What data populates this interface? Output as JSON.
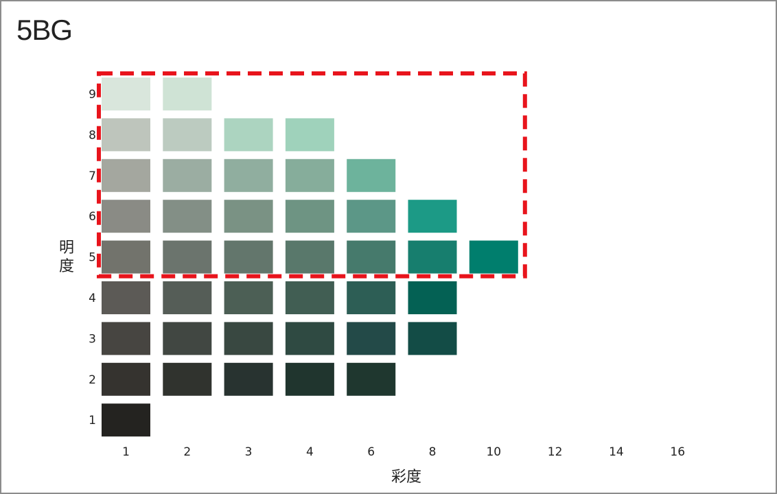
{
  "title": "5BG",
  "axes": {
    "x_label": "彩度",
    "y_label": "明度",
    "x_ticks": [
      "1",
      "2",
      "3",
      "4",
      "6",
      "8",
      "10",
      "12",
      "14",
      "16"
    ],
    "y_ticks": [
      "1",
      "2",
      "3",
      "4",
      "5",
      "6",
      "7",
      "8",
      "9"
    ]
  },
  "highlight": {
    "style": "dashed",
    "color": "#e8141c",
    "value_range": [
      5,
      9
    ],
    "chroma_range": [
      1,
      10
    ]
  },
  "swatches": [
    {
      "value": 9,
      "chroma": 1,
      "color": "#d9e6dc"
    },
    {
      "value": 9,
      "chroma": 2,
      "color": "#cfe3d5"
    },
    {
      "value": 8,
      "chroma": 1,
      "color": "#bec5bc"
    },
    {
      "value": 8,
      "chroma": 2,
      "color": "#bccbc0"
    },
    {
      "value": 8,
      "chroma": 3,
      "color": "#acd4c0"
    },
    {
      "value": 8,
      "chroma": 4,
      "color": "#9fd2bb"
    },
    {
      "value": 7,
      "chroma": 1,
      "color": "#a4a79f"
    },
    {
      "value": 7,
      "chroma": 2,
      "color": "#9bada2"
    },
    {
      "value": 7,
      "chroma": 3,
      "color": "#90ae9f"
    },
    {
      "value": 7,
      "chroma": 4,
      "color": "#86ad9b"
    },
    {
      "value": 7,
      "chroma": 6,
      "color": "#6db39c"
    },
    {
      "value": 6,
      "chroma": 1,
      "color": "#8a8b85"
    },
    {
      "value": 6,
      "chroma": 2,
      "color": "#838f86"
    },
    {
      "value": 6,
      "chroma": 3,
      "color": "#7a9284"
    },
    {
      "value": 6,
      "chroma": 4,
      "color": "#6e9483"
    },
    {
      "value": 6,
      "chroma": 6,
      "color": "#5c9787"
    },
    {
      "value": 6,
      "chroma": 8,
      "color": "#1c9a86"
    },
    {
      "value": 5,
      "chroma": 1,
      "color": "#72736c"
    },
    {
      "value": 5,
      "chroma": 2,
      "color": "#6b746d"
    },
    {
      "value": 5,
      "chroma": 3,
      "color": "#63766c"
    },
    {
      "value": 5,
      "chroma": 4,
      "color": "#59786b"
    },
    {
      "value": 5,
      "chroma": 6,
      "color": "#467a6c"
    },
    {
      "value": 5,
      "chroma": 8,
      "color": "#177e6e"
    },
    {
      "value": 5,
      "chroma": 10,
      "color": "#007e6d"
    },
    {
      "value": 4,
      "chroma": 1,
      "color": "#5c5a56"
    },
    {
      "value": 4,
      "chroma": 2,
      "color": "#555d57"
    },
    {
      "value": 4,
      "chroma": 3,
      "color": "#4c5f55"
    },
    {
      "value": 4,
      "chroma": 4,
      "color": "#415e53"
    },
    {
      "value": 4,
      "chroma": 6,
      "color": "#2d5e55"
    },
    {
      "value": 4,
      "chroma": 8,
      "color": "#046154"
    },
    {
      "value": 3,
      "chroma": 1,
      "color": "#474541"
    },
    {
      "value": 3,
      "chroma": 2,
      "color": "#414742"
    },
    {
      "value": 3,
      "chroma": 3,
      "color": "#394841"
    },
    {
      "value": 3,
      "chroma": 4,
      "color": "#2f4a42"
    },
    {
      "value": 3,
      "chroma": 6,
      "color": "#234a48"
    },
    {
      "value": 3,
      "chroma": 8,
      "color": "#134c46"
    },
    {
      "value": 2,
      "chroma": 1,
      "color": "#35332f"
    },
    {
      "value": 2,
      "chroma": 2,
      "color": "#30332e"
    },
    {
      "value": 2,
      "chroma": 3,
      "color": "#283330"
    },
    {
      "value": 2,
      "chroma": 4,
      "color": "#20352e"
    },
    {
      "value": 2,
      "chroma": 6,
      "color": "#1f372f"
    },
    {
      "value": 1,
      "chroma": 1,
      "color": "#242320"
    }
  ]
}
